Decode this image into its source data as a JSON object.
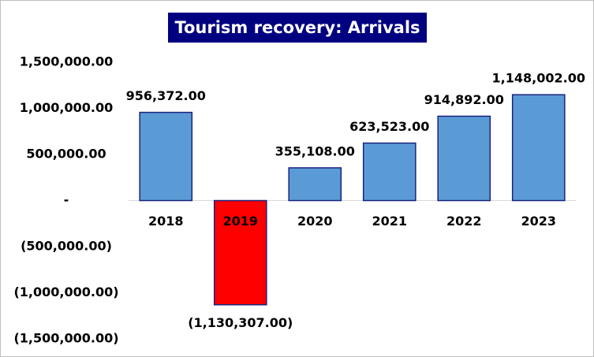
{
  "chart_data": {
    "type": "bar",
    "title": "Tourism recovery: Arrivals",
    "categories": [
      "2018",
      "2019",
      "2020",
      "2021",
      "2022",
      "2023"
    ],
    "values": [
      956372,
      -1130307,
      355108,
      623523,
      914892,
      1148002
    ],
    "value_labels": [
      "956,372.00",
      "(1,130,307.00)",
      "355,108.00",
      "623,523.00",
      "914,892.00",
      "1,148,002.00"
    ],
    "colors": [
      "#5b9bd5",
      "#ff0000",
      "#5b9bd5",
      "#5b9bd5",
      "#5b9bd5",
      "#5b9bd5"
    ],
    "ylim": [
      -1500000,
      1500000
    ],
    "yticks": [
      {
        "value": -1500000,
        "label": "(1,500,000.00)"
      },
      {
        "value": -1000000,
        "label": "(1,000,000.00)"
      },
      {
        "value": -500000,
        "label": "(500,000.00)"
      },
      {
        "value": 0,
        "label": "-"
      },
      {
        "value": 500000,
        "label": "500,000.00"
      },
      {
        "value": 1000000,
        "label": "1,000,000.00"
      },
      {
        "value": 1500000,
        "label": "1,500,000.00"
      }
    ],
    "grid": false
  }
}
